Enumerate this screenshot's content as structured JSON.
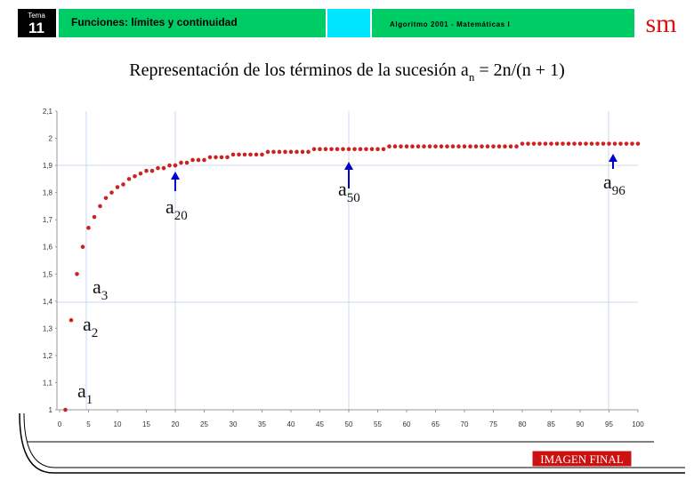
{
  "header": {
    "tema_label": "Tema",
    "tema_number": "11",
    "topic": "Funciones: límites y continuidad",
    "course": "Algoritmo 2001 - Matemáticas I",
    "logo": "sm"
  },
  "footer": {
    "button": "IMAGEN FINAL"
  },
  "chart_data": {
    "type": "scatter",
    "title": {
      "main": "Representación de los términos de la sucesión a",
      "sub": "n",
      "rest": " = 2n/(n + 1)"
    },
    "color": "#cc2222",
    "x": [
      1,
      2,
      3,
      4,
      5,
      6,
      7,
      8,
      9,
      10,
      11,
      12,
      13,
      14,
      15,
      16,
      17,
      18,
      19,
      20,
      21,
      22,
      23,
      24,
      25,
      26,
      27,
      28,
      29,
      30,
      31,
      32,
      33,
      34,
      35,
      36,
      37,
      38,
      39,
      40,
      41,
      42,
      43,
      44,
      45,
      46,
      47,
      48,
      49,
      50,
      51,
      52,
      53,
      54,
      55,
      56,
      57,
      58,
      59,
      60,
      61,
      62,
      63,
      64,
      65,
      66,
      67,
      68,
      69,
      70,
      71,
      72,
      73,
      74,
      75,
      76,
      77,
      78,
      79,
      80,
      81,
      82,
      83,
      84,
      85,
      86,
      87,
      88,
      89,
      90,
      91,
      92,
      93,
      94,
      95,
      96,
      97,
      98,
      99,
      100
    ],
    "values": [
      1.0,
      1.33,
      1.5,
      1.6,
      1.67,
      1.71,
      1.75,
      1.78,
      1.8,
      1.82,
      1.83,
      1.85,
      1.86,
      1.87,
      1.88,
      1.88,
      1.89,
      1.89,
      1.9,
      1.9,
      1.91,
      1.91,
      1.92,
      1.92,
      1.92,
      1.93,
      1.93,
      1.93,
      1.93,
      1.94,
      1.94,
      1.94,
      1.94,
      1.94,
      1.94,
      1.95,
      1.95,
      1.95,
      1.95,
      1.95,
      1.95,
      1.95,
      1.95,
      1.96,
      1.96,
      1.96,
      1.96,
      1.96,
      1.96,
      1.96,
      1.96,
      1.96,
      1.96,
      1.96,
      1.96,
      1.96,
      1.97,
      1.97,
      1.97,
      1.97,
      1.97,
      1.97,
      1.97,
      1.97,
      1.97,
      1.97,
      1.97,
      1.97,
      1.97,
      1.97,
      1.97,
      1.97,
      1.97,
      1.97,
      1.97,
      1.97,
      1.97,
      1.97,
      1.97,
      1.98,
      1.98,
      1.98,
      1.98,
      1.98,
      1.98,
      1.98,
      1.98,
      1.98,
      1.98,
      1.98,
      1.98,
      1.98,
      1.98,
      1.98,
      1.98,
      1.98,
      1.98,
      1.98,
      1.98,
      1.98
    ],
    "xlim": [
      0,
      100
    ],
    "xticks": [
      0,
      5,
      10,
      15,
      20,
      25,
      30,
      35,
      40,
      45,
      50,
      55,
      60,
      65,
      70,
      75,
      80,
      85,
      90,
      95,
      100
    ],
    "ylim": [
      1,
      2.1
    ],
    "yticks": [
      1,
      {
        "value": 1.1,
        "label": "1,1"
      },
      {
        "value": 1.2,
        "label": "1,2"
      },
      {
        "value": 1.3,
        "label": "1,3"
      },
      {
        "value": 1.4,
        "label": "1,4"
      },
      {
        "value": 1.5,
        "label": "1,5"
      },
      {
        "value": 1.6,
        "label": "1,6"
      },
      {
        "value": 1.7,
        "label": "1,7"
      },
      {
        "value": 1.8,
        "label": "1,8"
      },
      {
        "value": 1.9,
        "label": "1,9"
      },
      2,
      {
        "value": 2.1,
        "label": "2,1"
      }
    ],
    "annotations": [
      {
        "text": "a",
        "sub": "20"
      },
      {
        "text": "a",
        "sub": "50"
      },
      {
        "text": "a",
        "sub": "96"
      },
      {
        "text": "a",
        "sub": "3"
      },
      {
        "text": "a",
        "sub": "2"
      },
      {
        "text": "a",
        "sub": "1"
      }
    ]
  }
}
